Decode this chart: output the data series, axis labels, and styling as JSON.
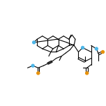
{
  "background_color": "#ffffff",
  "bond_color": "#000000",
  "oxygen_color": "#4db6e8",
  "carbonyl_o_color": "#e8920a",
  "figsize": [
    1.52,
    1.52
  ],
  "dpi": 100
}
